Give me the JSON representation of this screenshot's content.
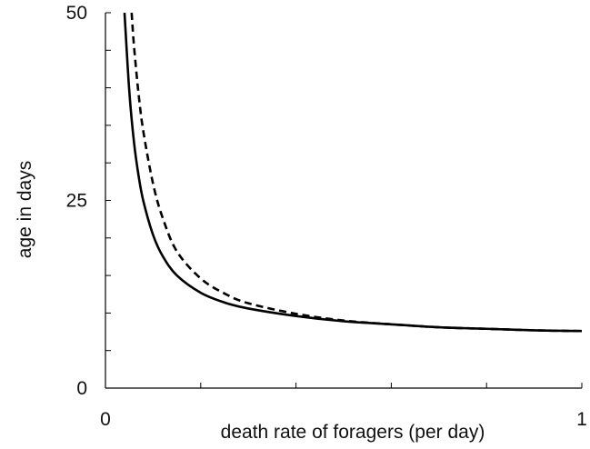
{
  "chart_data": {
    "type": "line",
    "xlabel": "death rate of foragers (per day)",
    "ylabel": "age in days",
    "xlim": [
      0,
      1
    ],
    "ylim": [
      0,
      50
    ],
    "x_ticks": [
      0,
      0.2,
      0.4,
      0.6,
      0.8,
      1
    ],
    "x_tick_labels": [
      "0",
      "",
      "",
      "",
      "",
      "1"
    ],
    "y_ticks": [
      0,
      5,
      10,
      15,
      20,
      25,
      30,
      35,
      40,
      45,
      50
    ],
    "y_tick_labels": [
      "0",
      "",
      "",
      "",
      "",
      "25",
      "",
      "",
      "",
      "",
      "50"
    ],
    "grid": false,
    "legend": "none",
    "series": [
      {
        "style": "solid",
        "color": "#000000",
        "x": [
          0.04,
          0.05,
          0.06,
          0.07,
          0.08,
          0.1,
          0.12,
          0.15,
          0.2,
          0.25,
          0.3,
          0.4,
          0.5,
          0.6,
          0.7,
          0.8,
          0.9,
          1.0
        ],
        "y": [
          50.0,
          39.6,
          32.7,
          28.1,
          24.8,
          20.4,
          17.6,
          15.0,
          12.7,
          11.4,
          10.6,
          9.6,
          8.9,
          8.5,
          8.1,
          7.9,
          7.7,
          7.6
        ]
      },
      {
        "style": "dashed",
        "color": "#000000",
        "x": [
          0.055,
          0.06,
          0.07,
          0.08,
          0.1,
          0.12,
          0.15,
          0.2,
          0.25,
          0.3,
          0.4,
          0.5,
          0.6,
          0.7,
          0.8,
          0.9,
          1.0
        ],
        "y": [
          50.0,
          45.5,
          38.9,
          34.0,
          27.2,
          22.7,
          18.2,
          14.6,
          12.6,
          11.3,
          9.9,
          9.0,
          8.5,
          8.1,
          7.9,
          7.7,
          7.6
        ]
      }
    ]
  }
}
